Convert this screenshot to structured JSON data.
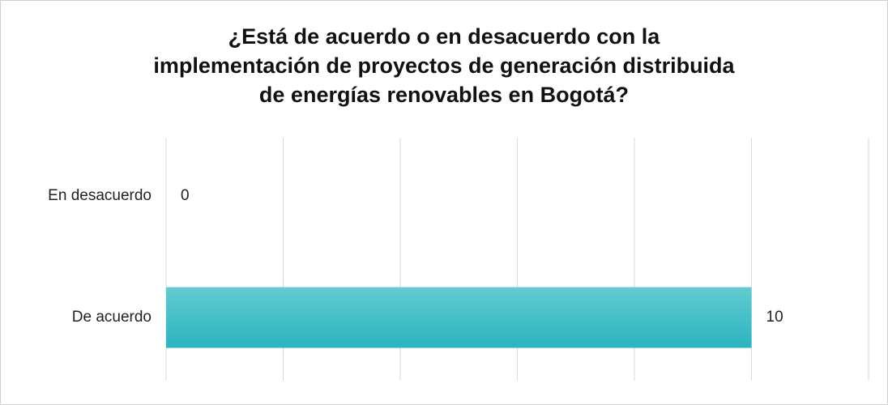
{
  "chart_data": {
    "type": "hbar",
    "title": [
      "¿Está de acuerdo o en desacuerdo con la",
      "implementación de proyectos de generación distribuida",
      "de energías renovables en Bogotá?"
    ],
    "categories": [
      "En desacuerdo",
      "De acuerdo"
    ],
    "values": [
      0,
      10
    ],
    "color": "#3cc0ca",
    "xlim": [
      0,
      12
    ],
    "xticks": [
      0,
      2,
      4,
      6,
      8,
      10,
      12
    ],
    "grid": true,
    "tick_labels": false
  }
}
